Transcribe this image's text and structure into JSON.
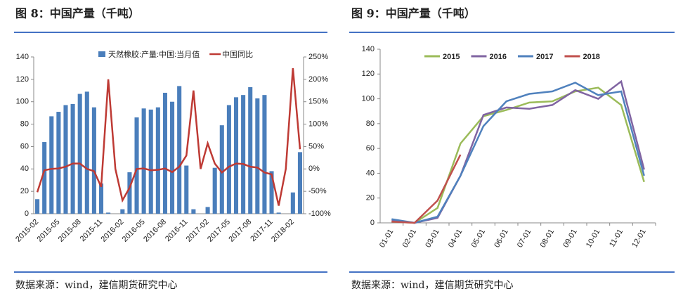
{
  "chart_data": [
    {
      "type": "bar_line",
      "title": "图 8：中国产量（千吨）",
      "source": "数据来源：wind，建信期货研究中心",
      "categories": [
        "2015-02",
        null,
        null,
        "2015-05",
        null,
        null,
        "2015-08",
        null,
        null,
        "2015-11",
        null,
        null,
        "2016-02",
        null,
        null,
        "2016-05",
        null,
        null,
        "2016-08",
        null,
        null,
        "2016-11",
        null,
        null,
        "2017-02",
        null,
        null,
        "2017-05",
        null,
        null,
        "2017-08",
        null,
        null,
        "2017-11",
        null,
        null,
        "2018-02",
        null
      ],
      "series": [
        {
          "name": "天然橡胶:产量:中国:当月值",
          "color": "#4a7ebb",
          "kind": "bar",
          "values": [
            13,
            64,
            87,
            91,
            97,
            98,
            107,
            109,
            95,
            27,
            1,
            0,
            4,
            37,
            86,
            94,
            93,
            95,
            108,
            100,
            114,
            43,
            4,
            0,
            6,
            41,
            79,
            97,
            104,
            106,
            113,
            103,
            106,
            38,
            1,
            0,
            19,
            55
          ]
        },
        {
          "name": "中国同比",
          "color": "#be3a34",
          "kind": "line",
          "axis": "y2",
          "values": [
            -52,
            -3,
            0,
            1,
            5,
            12,
            12,
            0,
            -5,
            -40,
            200,
            0,
            -70,
            -42,
            0,
            1,
            -3,
            -2,
            1,
            -7,
            5,
            30,
            175,
            0,
            57,
            12,
            -8,
            5,
            12,
            11,
            5,
            3,
            -8,
            -12,
            -82,
            0,
            225,
            44
          ]
        }
      ],
      "ylim": [
        0,
        140
      ],
      "yticks": [
        0,
        20,
        40,
        60,
        80,
        100,
        120,
        140
      ],
      "y2lim": [
        -100,
        250
      ],
      "y2ticks": [
        {
          "value": -100,
          "label": "-100%"
        },
        {
          "value": -50,
          "label": "-50%"
        },
        {
          "value": 0,
          "label": "0%"
        },
        {
          "value": 50,
          "label": "50%"
        },
        {
          "value": 100,
          "label": "100%"
        },
        {
          "value": 150,
          "label": "150%"
        },
        {
          "value": 200,
          "label": "200%"
        },
        {
          "value": 250,
          "label": "250%"
        }
      ]
    },
    {
      "type": "line",
      "title": "图 9：中国产量（千吨）",
      "source": "数据来源：wind，建信期货研究中心",
      "categories": [
        "01-01",
        "02-01",
        "03-01",
        "04-01",
        "05-01",
        "06-01",
        "07-01",
        "08-01",
        "09-01",
        "10-01",
        "11-01",
        "12-01"
      ],
      "series": [
        {
          "name": "2015",
          "color": "#9bbb59",
          "values": [
            1,
            0,
            12,
            64,
            86,
            91,
            97,
            98,
            106,
            109,
            95,
            33
          ]
        },
        {
          "name": "2016",
          "color": "#8064a2",
          "values": [
            2,
            0,
            4,
            38,
            87,
            93,
            92,
            95,
            107,
            100,
            114,
            43
          ]
        },
        {
          "name": "2017",
          "color": "#4f81bd",
          "values": [
            3,
            0,
            5,
            38,
            78,
            98,
            104,
            106,
            113,
            103,
            106,
            38
          ]
        },
        {
          "name": "2018",
          "color": "#c0504d",
          "values": [
            1,
            0,
            18,
            55,
            null,
            null,
            null,
            null,
            null,
            null,
            null,
            null
          ]
        }
      ],
      "ylim": [
        0,
        140
      ],
      "yticks": [
        0,
        20,
        40,
        60,
        80,
        100,
        120,
        140
      ]
    }
  ]
}
